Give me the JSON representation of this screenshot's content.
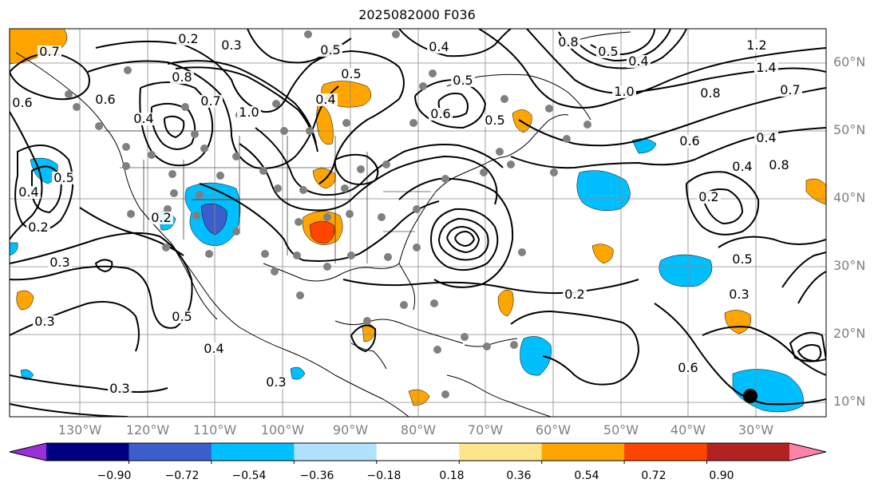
{
  "title": "2025082000 F036",
  "lat_labels": [
    "60°N",
    "50°N",
    "40°N",
    "30°N",
    "20°N",
    "10°N"
  ],
  "lon_labels": [
    "130°W",
    "120°W",
    "110°W",
    "100°W",
    "90°W",
    "80°W",
    "70°W",
    "60°W",
    "50°W",
    "40°W",
    "30°W"
  ],
  "colorbar": {
    "colors": [
      "#9b30d8",
      "#000080",
      "#3a5fcd",
      "#00bfff",
      "#b0e2ff",
      "#ffffff",
      "#fde68a",
      "#ffa500",
      "#ff4500",
      "#b22222",
      "#ff82ab"
    ],
    "ticks": [
      "−0.90",
      "−0.72",
      "−0.54",
      "−0.36",
      "−0.18",
      "0.18",
      "0.36",
      "0.54",
      "0.72",
      "0.90"
    ]
  },
  "contour_labels": [
    "0.7",
    "0.2",
    "0.3",
    "0.5",
    "0.4",
    "0.5",
    "0.4",
    "0.5",
    "0.8",
    "0.5",
    "0.4",
    "1.2",
    "1.4",
    "1.0",
    "0.8",
    "0.7",
    "0.6",
    "0.4",
    "0.5",
    "0.8",
    "0.7",
    "0.4",
    "1.0",
    "0.6",
    "0.6",
    "0.8",
    "0.4",
    "0.5",
    "0.6",
    "0.4",
    "0.2",
    "0.5",
    "0.2",
    "0.3",
    "0.2",
    "0.3",
    "0.3",
    "0.4",
    "0.5",
    "0.3",
    "0.2",
    "0.3",
    "0.6"
  ]
}
